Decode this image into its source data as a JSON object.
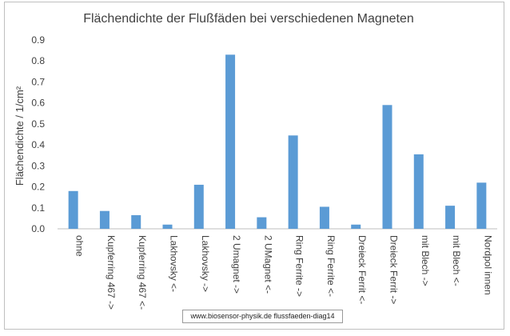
{
  "chart_data": {
    "type": "bar",
    "title": "Flächendichte der Flußfäden bei verschiedenen Magneten",
    "ylabel": "Flächendichte  / 1/cm²",
    "xlabel": "",
    "categories": [
      "ohne",
      "Kupferring 467 ->",
      "Kupferring 467 <-",
      "Lakhovsky <-",
      "Lakhovsky ->",
      "2 Umagnet ->",
      "2 UMagnet <-",
      "Ring Ferrite ->",
      "Ring Ferrite <-",
      "Dreieck Ferrit <-",
      "Dreieck Ferrit ->",
      "mit Blech ->",
      "mit Blech <-",
      "Nordpol innen"
    ],
    "values": [
      0.18,
      0.085,
      0.065,
      0.02,
      0.21,
      0.83,
      0.055,
      0.445,
      0.105,
      0.02,
      0.59,
      0.355,
      0.11,
      0.22
    ],
    "yticks": [
      "0.0",
      "0.1",
      "0.2",
      "0.3",
      "0.4",
      "0.5",
      "0.6",
      "0.7",
      "0.8",
      "0.9"
    ],
    "ylim": [
      0,
      0.9
    ],
    "grid": false,
    "bar_color": "#5b9bd5"
  },
  "watermark": "www.biosensor-physik.de  flussfaeden-diag14"
}
